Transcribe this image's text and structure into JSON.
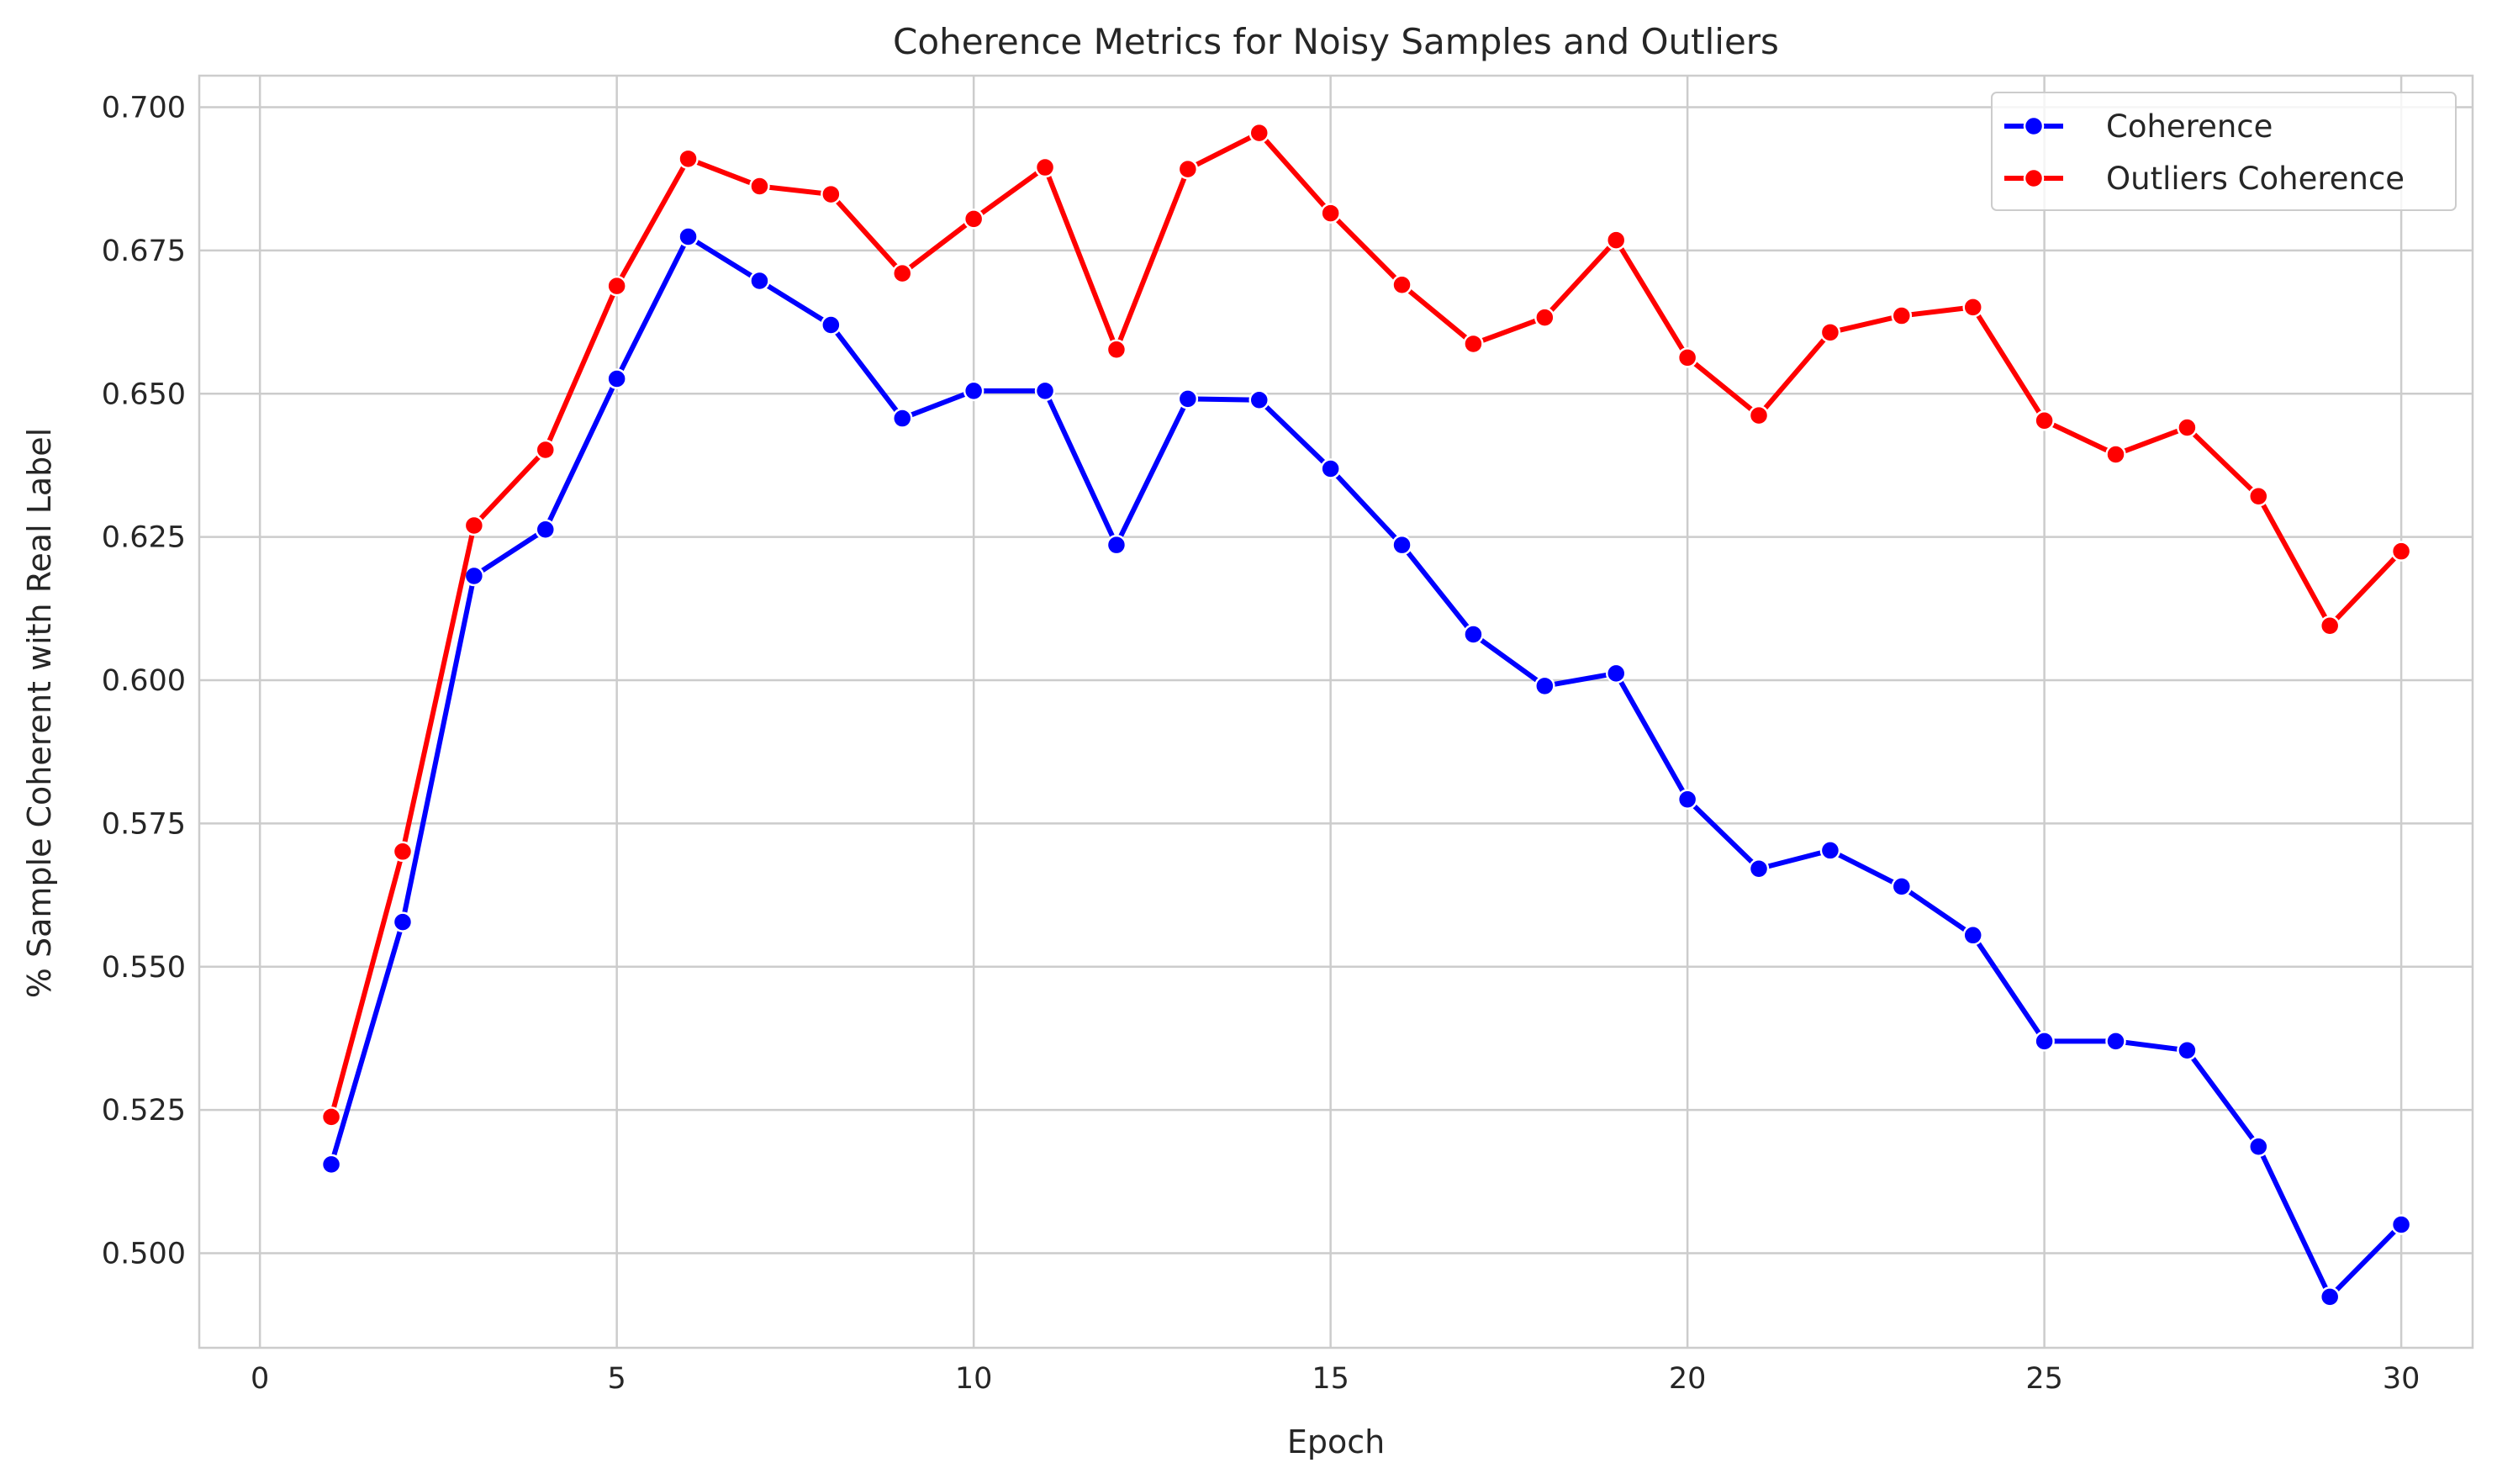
{
  "chart_data": {
    "type": "line",
    "title": "Coherence Metrics for Noisy Samples and Outliers",
    "xlabel": "Epoch",
    "ylabel": "% Sample Coherent with Real Label",
    "xlim": [
      -0.85,
      31.0
    ],
    "ylim": [
      0.4835,
      0.7055
    ],
    "xticks": [
      0,
      5,
      10,
      15,
      20,
      25,
      30
    ],
    "yticks": [
      0.5,
      0.525,
      0.55,
      0.575,
      0.6,
      0.625,
      0.65,
      0.675,
      0.7
    ],
    "ytick_labels": [
      "0.500",
      "0.525",
      "0.550",
      "0.575",
      "0.600",
      "0.625",
      "0.650",
      "0.675",
      "0.700"
    ],
    "grid": true,
    "legend_position": "top-right",
    "x": [
      1,
      2,
      3,
      4,
      5,
      6,
      7,
      8,
      9,
      10,
      11,
      12,
      13,
      14,
      15,
      16,
      17,
      18,
      19,
      20,
      21,
      22,
      23,
      24,
      25,
      26,
      27,
      28,
      29,
      30
    ],
    "series": [
      {
        "name": "Coherence",
        "color": "#0000ff",
        "marker": "circle",
        "values": [
          0.5155,
          0.5578,
          0.6182,
          0.6263,
          0.6526,
          0.6774,
          0.6697,
          0.662,
          0.6457,
          0.6505,
          0.6505,
          0.6236,
          0.6491,
          0.6489,
          0.6369,
          0.6236,
          0.608,
          0.599,
          0.6012,
          0.5792,
          0.5671,
          0.5703,
          0.564,
          0.5555,
          0.537,
          0.537,
          0.5354,
          0.5186,
          0.4924,
          0.505
        ]
      },
      {
        "name": "Outliers Coherence",
        "color": "#ff0000",
        "marker": "circle",
        "values": [
          0.5238,
          0.5701,
          0.627,
          0.6402,
          0.6688,
          0.691,
          0.6862,
          0.6848,
          0.671,
          0.6805,
          0.6895,
          0.6577,
          0.6892,
          0.6955,
          0.6815,
          0.669,
          0.6587,
          0.6633,
          0.6768,
          0.6563,
          0.6462,
          0.6607,
          0.6636,
          0.6651,
          0.6453,
          0.6394,
          0.6441,
          0.6321,
          0.6095,
          0.6225
        ]
      }
    ]
  }
}
